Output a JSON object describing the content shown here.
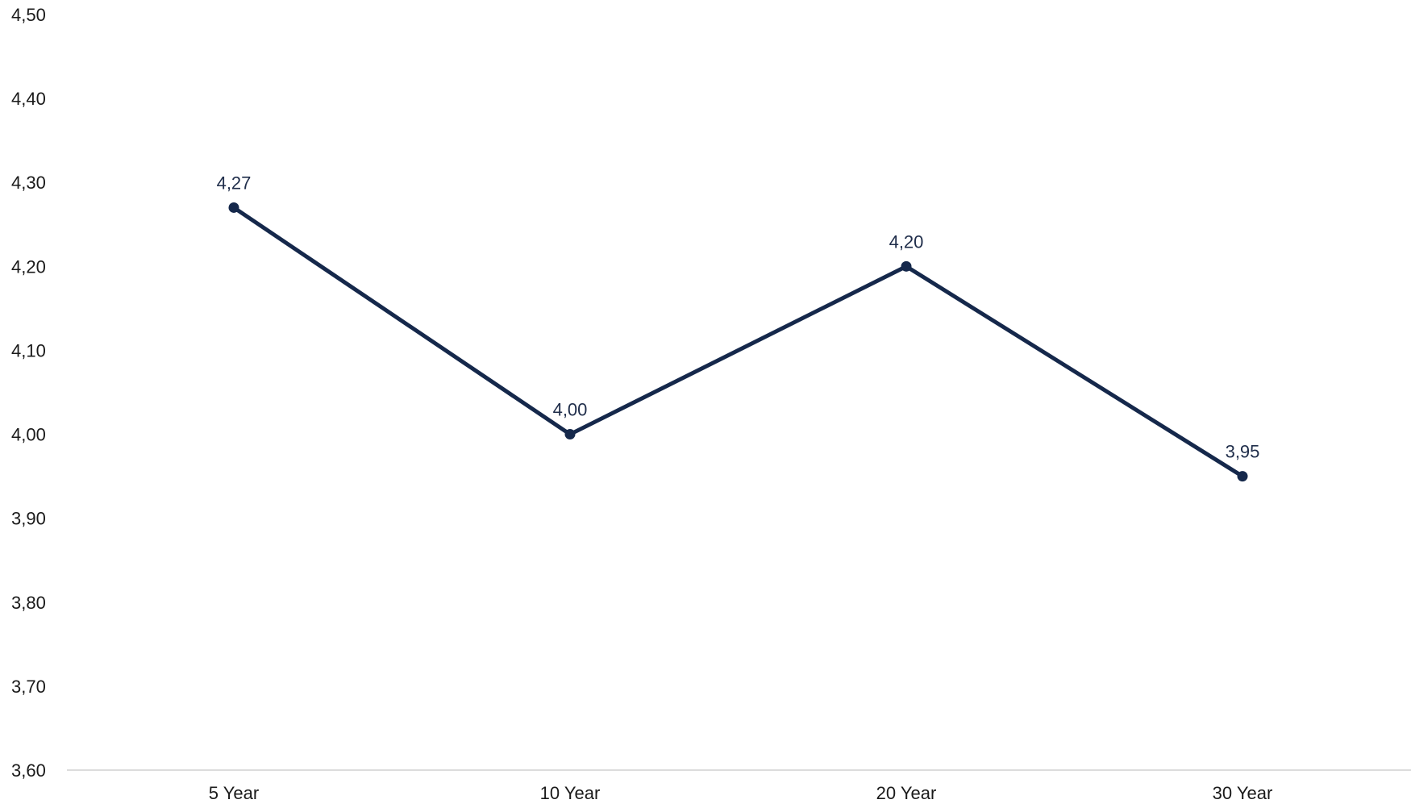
{
  "chart_data": {
    "type": "line",
    "categories": [
      "5 Year",
      "10 Year",
      "20 Year",
      "30 Year"
    ],
    "series": [
      {
        "values": [
          4.27,
          4.0,
          4.2,
          3.95
        ],
        "data_labels": [
          "4,27",
          "4,00",
          "4,20",
          "3,95"
        ]
      }
    ],
    "ylim": [
      3.6,
      4.5
    ],
    "y_ticks": [
      3.6,
      3.7,
      3.8,
      3.9,
      4.0,
      4.1,
      4.2,
      4.3,
      4.4,
      4.5
    ],
    "y_tick_labels": [
      "3,60",
      "3,70",
      "3,80",
      "3,90",
      "4,00",
      "4,10",
      "4,20",
      "4,30",
      "4,40",
      "4,50"
    ],
    "title": "",
    "xlabel": "",
    "ylabel": "",
    "grid": false,
    "legend": "none",
    "colors": {
      "line": "#15284b",
      "axis": "#d0d0d0"
    }
  }
}
